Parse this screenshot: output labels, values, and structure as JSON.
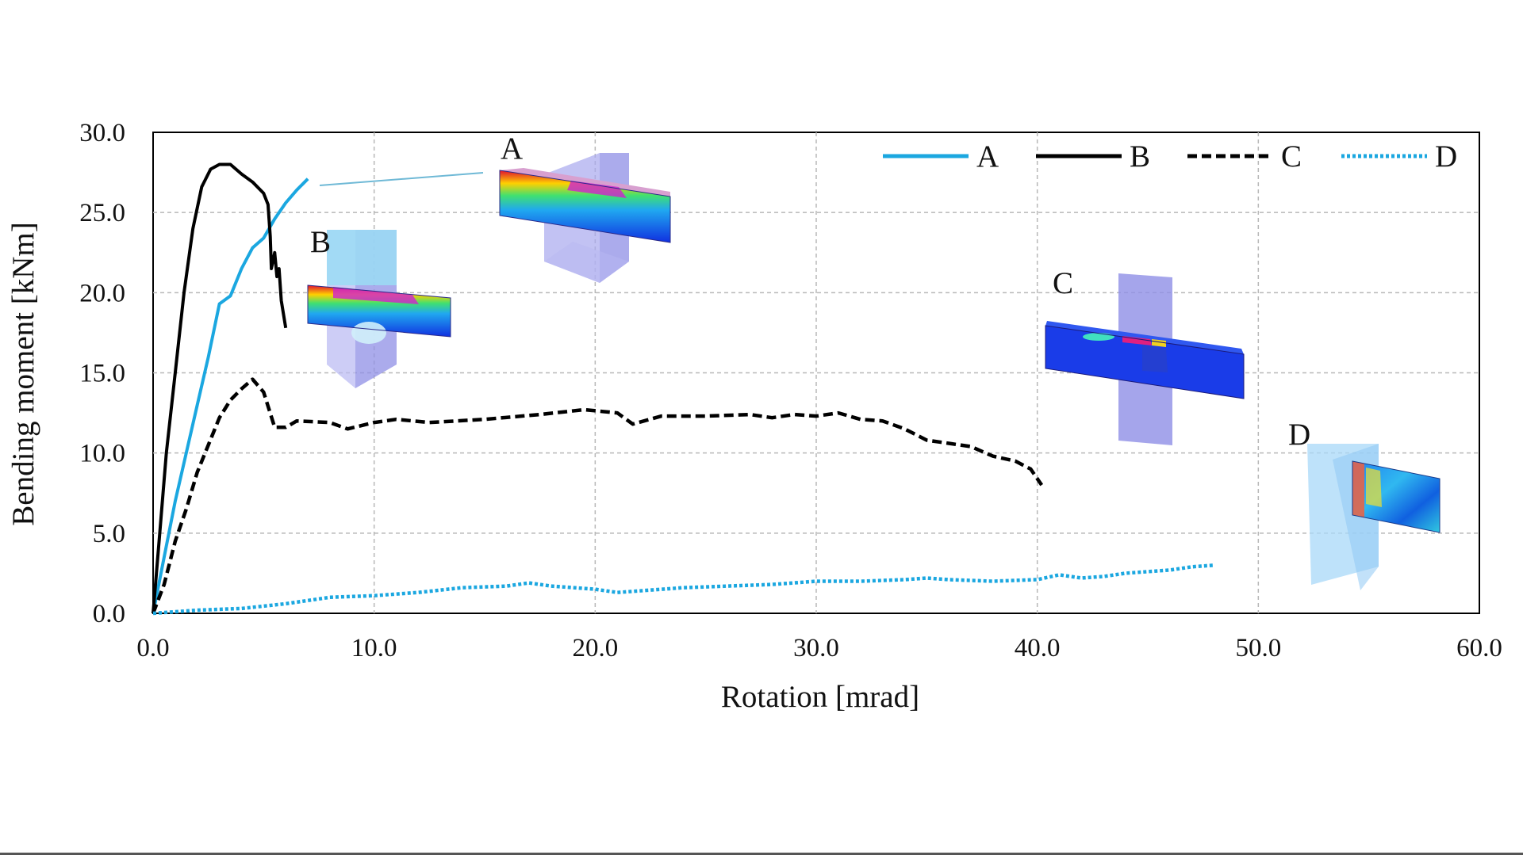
{
  "chart_data": {
    "type": "line",
    "xlabel": "Rotation [mrad]",
    "ylabel": "Bending moment [kNm]",
    "xlim": [
      0,
      60
    ],
    "ylim": [
      0,
      30
    ],
    "x_ticks": [
      "0.0",
      "10.0",
      "20.0",
      "30.0",
      "40.0",
      "50.0",
      "60.0"
    ],
    "y_ticks": [
      "0.0",
      "5.0",
      "10.0",
      "15.0",
      "20.0",
      "25.0",
      "30.0"
    ],
    "grid": true,
    "legend": "top-right",
    "series": [
      {
        "name": "A",
        "color": "#1BA7E0",
        "dash": "solid",
        "points": [
          [
            0,
            0
          ],
          [
            0.5,
            3.5
          ],
          [
            1.0,
            7
          ],
          [
            1.5,
            10
          ],
          [
            2.0,
            13
          ],
          [
            2.5,
            16
          ],
          [
            3.0,
            19.3
          ],
          [
            3.5,
            19.8
          ],
          [
            4.0,
            21.5
          ],
          [
            4.5,
            22.8
          ],
          [
            5.0,
            23.4
          ],
          [
            5.5,
            24.6
          ],
          [
            6.0,
            25.6
          ],
          [
            6.5,
            26.4
          ],
          [
            7.0,
            27.1
          ]
        ]
      },
      {
        "name": "B",
        "color": "#000000",
        "dash": "solid",
        "points": [
          [
            0,
            0
          ],
          [
            0.3,
            5
          ],
          [
            0.6,
            10
          ],
          [
            1.0,
            15
          ],
          [
            1.4,
            20
          ],
          [
            1.8,
            24
          ],
          [
            2.2,
            26.6
          ],
          [
            2.6,
            27.7
          ],
          [
            3.0,
            28.0
          ],
          [
            3.5,
            28.0
          ],
          [
            4.0,
            27.4
          ],
          [
            4.5,
            26.9
          ],
          [
            5.0,
            26.2
          ],
          [
            5.2,
            25.5
          ],
          [
            5.3,
            23.5
          ],
          [
            5.35,
            21.5
          ],
          [
            5.5,
            22.5
          ],
          [
            5.6,
            21.0
          ],
          [
            5.7,
            21.5
          ],
          [
            5.8,
            19.5
          ],
          [
            6.0,
            17.8
          ]
        ]
      },
      {
        "name": "C",
        "color": "#000000",
        "dash": "dashed",
        "points": [
          [
            0,
            0
          ],
          [
            0.5,
            1.8
          ],
          [
            1.0,
            4.5
          ],
          [
            1.5,
            6.5
          ],
          [
            2.0,
            8.8
          ],
          [
            2.5,
            10.5
          ],
          [
            3.0,
            12.2
          ],
          [
            3.5,
            13.3
          ],
          [
            4.0,
            14.0
          ],
          [
            4.5,
            14.6
          ],
          [
            5.0,
            13.8
          ],
          [
            5.5,
            11.6
          ],
          [
            6.0,
            11.6
          ],
          [
            6.5,
            12.0
          ],
          [
            8.0,
            11.9
          ],
          [
            8.8,
            11.5
          ],
          [
            10.0,
            11.9
          ],
          [
            11.0,
            12.1
          ],
          [
            12.5,
            11.9
          ],
          [
            15.0,
            12.1
          ],
          [
            17.5,
            12.4
          ],
          [
            19.5,
            12.7
          ],
          [
            21.0,
            12.5
          ],
          [
            21.7,
            11.8
          ],
          [
            23.0,
            12.3
          ],
          [
            25.0,
            12.3
          ],
          [
            27.0,
            12.4
          ],
          [
            28.0,
            12.2
          ],
          [
            29.0,
            12.4
          ],
          [
            30.0,
            12.3
          ],
          [
            31.0,
            12.5
          ],
          [
            32.0,
            12.1
          ],
          [
            33.0,
            12.0
          ],
          [
            34.0,
            11.5
          ],
          [
            35.0,
            10.8
          ],
          [
            36.0,
            10.6
          ],
          [
            37.0,
            10.4
          ],
          [
            38.0,
            9.8
          ],
          [
            39.0,
            9.5
          ],
          [
            39.7,
            9.0
          ],
          [
            40.2,
            8.0
          ]
        ]
      },
      {
        "name": "D",
        "color": "#1BA7E0",
        "dash": "dotted",
        "points": [
          [
            0,
            0
          ],
          [
            2,
            0.2
          ],
          [
            4,
            0.3
          ],
          [
            6,
            0.6
          ],
          [
            8,
            1.0
          ],
          [
            10,
            1.1
          ],
          [
            12,
            1.3
          ],
          [
            14,
            1.6
          ],
          [
            16,
            1.7
          ],
          [
            17,
            1.9
          ],
          [
            18,
            1.7
          ],
          [
            19,
            1.6
          ],
          [
            20,
            1.5
          ],
          [
            21,
            1.3
          ],
          [
            22,
            1.4
          ],
          [
            24,
            1.6
          ],
          [
            26,
            1.7
          ],
          [
            28,
            1.8
          ],
          [
            30,
            2.0
          ],
          [
            32,
            2.0
          ],
          [
            34,
            2.1
          ],
          [
            35,
            2.2
          ],
          [
            36,
            2.1
          ],
          [
            38,
            2.0
          ],
          [
            40,
            2.1
          ],
          [
            41,
            2.4
          ],
          [
            42,
            2.2
          ],
          [
            43,
            2.3
          ],
          [
            44,
            2.5
          ],
          [
            46,
            2.7
          ],
          [
            47,
            2.9
          ],
          [
            48,
            3.0
          ]
        ]
      }
    ],
    "annotations": [
      {
        "label": "A"
      },
      {
        "label": "B"
      },
      {
        "label": "C"
      },
      {
        "label": "D"
      }
    ]
  }
}
